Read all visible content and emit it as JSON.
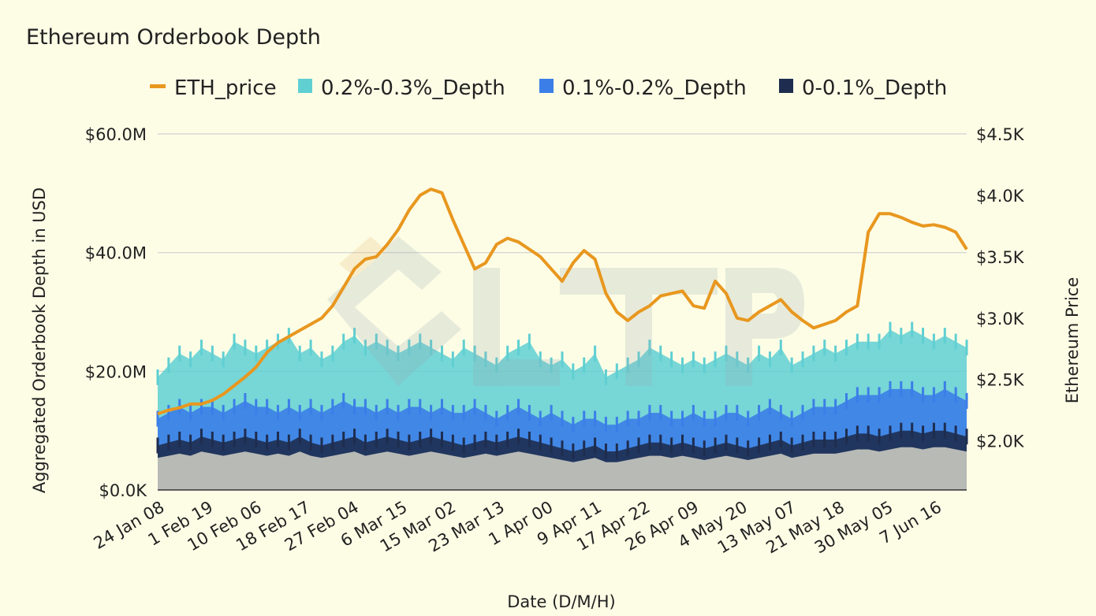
{
  "chart_data": {
    "type": "area",
    "title": "Ethereum Orderbook Depth",
    "xlabel": "Date (D/M/H)",
    "ylabel": "Aggregated Orderbook Depth in USD",
    "y2label": "Ethereum Price",
    "ylim": [
      0,
      60000000
    ],
    "y2lim": [
      1600,
      4500
    ],
    "y_ticks": [
      "$0.0K",
      "$20.0M",
      "$40.0M",
      "$60.0M"
    ],
    "y_tick_values": [
      0,
      20000000,
      40000000,
      60000000
    ],
    "y2_ticks": [
      "$2.0K",
      "$2.5K",
      "$3.0K",
      "$3.5K",
      "$4.0K",
      "$4.5K"
    ],
    "y2_tick_values": [
      2000,
      2500,
      3000,
      3500,
      4000,
      4500
    ],
    "x_ticks": [
      "24 Jan 08",
      "1 Feb 19",
      "10 Feb 06",
      "18 Feb 17",
      "27 Feb 04",
      "6 Mar 15",
      "15 Mar 02",
      "23 Mar 13",
      "1 Apr 00",
      "9 Apr 11",
      "17 Apr 22",
      "26 Apr 09",
      "4 May 20",
      "13 May 07",
      "21 May 18",
      "30 May 05",
      "7 Jun 16"
    ],
    "grid": true,
    "legend_position": "top",
    "watermark": "LTP",
    "series": [
      {
        "name": "ETH_price",
        "axis": "right",
        "render": "line",
        "color": "#e8971f",
        "values": [
          2220,
          2250,
          2270,
          2300,
          2300,
          2330,
          2380,
          2450,
          2520,
          2600,
          2720,
          2800,
          2850,
          2900,
          2950,
          3000,
          3100,
          3250,
          3400,
          3480,
          3500,
          3600,
          3720,
          3880,
          4000,
          4050,
          4020,
          3800,
          3600,
          3400,
          3450,
          3600,
          3650,
          3620,
          3560,
          3500,
          3400,
          3300,
          3450,
          3550,
          3480,
          3200,
          3050,
          2980,
          3050,
          3100,
          3180,
          3200,
          3220,
          3100,
          3080,
          3300,
          3200,
          3000,
          2980,
          3050,
          3100,
          3150,
          3050,
          2980,
          2920,
          2950,
          2980,
          3050,
          3100,
          3700,
          3850,
          3850,
          3820,
          3780,
          3750,
          3760,
          3740,
          3700,
          3560
        ]
      },
      {
        "name": "0.2%-0.3%_Depth",
        "axis": "left",
        "render": "area",
        "color": "#5fcfd2",
        "values": [
          19,
          21,
          23,
          22,
          24,
          23,
          22,
          25,
          24,
          23,
          24,
          25,
          26,
          23,
          24,
          22,
          23,
          25,
          26,
          24,
          25,
          24,
          23,
          24,
          25,
          24,
          23,
          22,
          24,
          23,
          22,
          21,
          23,
          24,
          25,
          22,
          21,
          22,
          20,
          21,
          23,
          19,
          20,
          21,
          22,
          24,
          23,
          22,
          21,
          22,
          21,
          22,
          23,
          22,
          21,
          23,
          22,
          24,
          21,
          22,
          23,
          24,
          23,
          24,
          25,
          25,
          25,
          27,
          26,
          27,
          26,
          25,
          26,
          25,
          24
        ]
      },
      {
        "name": "0.1%-0.2%_Depth",
        "axis": "left",
        "render": "area",
        "color": "#3b7ee8",
        "values": [
          12,
          13,
          14,
          13,
          14,
          14,
          13,
          14,
          15,
          14,
          14,
          13,
          14,
          13,
          14,
          13,
          14,
          15,
          14,
          14,
          13,
          14,
          13,
          14,
          14,
          13,
          14,
          13,
          13,
          14,
          13,
          12,
          13,
          14,
          13,
          12,
          13,
          12,
          11,
          12,
          12,
          11,
          11,
          12,
          12,
          13,
          13,
          12,
          12,
          13,
          12,
          12,
          13,
          13,
          12,
          13,
          14,
          13,
          12,
          13,
          14,
          14,
          14,
          15,
          16,
          16,
          16,
          17,
          17,
          17,
          16,
          16,
          17,
          16,
          15
        ]
      },
      {
        "name": "0-0.1%_Depth",
        "axis": "left",
        "render": "area",
        "color": "#1e2d4f",
        "values": [
          7.5,
          8,
          8.5,
          8,
          9,
          8.5,
          8,
          8.5,
          9,
          8.5,
          8,
          8.5,
          8,
          9,
          8,
          7.5,
          8,
          8.5,
          9,
          8,
          8.5,
          9,
          8.5,
          8,
          8.5,
          9,
          8.5,
          8,
          7.5,
          8,
          8.5,
          8,
          8.5,
          9,
          8.5,
          8,
          7.5,
          7,
          6.5,
          7,
          7.5,
          6.5,
          6.5,
          7,
          7.5,
          8,
          8,
          7.5,
          8,
          7.5,
          7,
          7.5,
          8,
          7.5,
          7,
          7.5,
          8,
          8.5,
          7.5,
          8,
          8.5,
          8.5,
          8.5,
          9,
          9.5,
          9.5,
          9,
          9.5,
          10,
          10,
          9.5,
          10,
          10,
          9.5,
          9
        ]
      }
    ]
  }
}
